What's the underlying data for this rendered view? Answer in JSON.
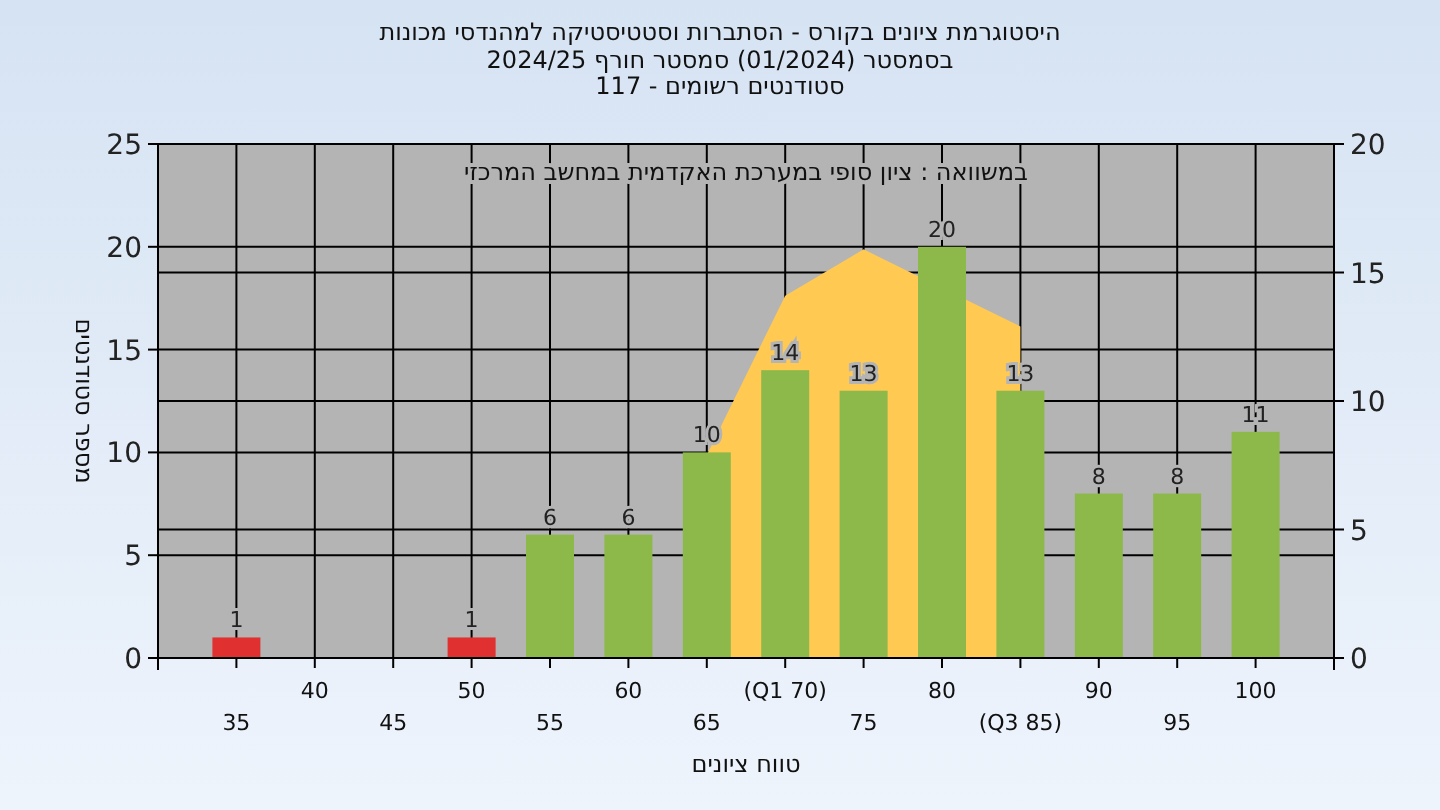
{
  "chart_data": {
    "type": "bar",
    "title": "היסטוגרמת ציונים בקורס - הסתברות וסטטיסטיקה למהנדסי מכונות",
    "subtitle": "בסמסטר  (01/2024)  סמסטר חורף 2024/25\nסטודנטים רשומים - 117",
    "xlabel": "טווח ציונים",
    "ylabel": "מספר סטודנטים",
    "annotations": [
      "במשוואה : ציון סופי במערכת האקדמית במחשב המרכזי"
    ],
    "categories": [
      "35",
      "40",
      "45",
      "50",
      "55",
      "60",
      "65",
      "(Q1 70)",
      "75",
      "80",
      "(Q3 85)",
      "90",
      "95",
      "100"
    ],
    "series": [
      {
        "type": "area",
        "axis": "y2",
        "color": "#ffc952",
        "values": [
          null,
          null,
          null,
          null,
          null,
          null,
          7.9,
          14.1,
          15.9,
          null,
          12.9,
          null,
          null,
          null
        ]
      },
      {
        "values": [
          1,
          0,
          0,
          1,
          6,
          6,
          10,
          14,
          13,
          20,
          13,
          8,
          8,
          11
        ],
        "value_labels": [
          "1",
          null,
          null,
          "1",
          "6",
          "6",
          "10",
          "14",
          "13",
          "20",
          "13",
          "8",
          "8",
          "11"
        ],
        "colors": [
          "#e03030",
          "#8db84a",
          "#8db84a",
          "#e03030",
          "#8db84a",
          "#8db84a",
          "#8db84a",
          "#8db84a",
          "#8db84a",
          "#8db84a",
          "#8db84a",
          "#8db84a",
          "#8db84a",
          "#8db84a"
        ]
      }
    ],
    "ylim": [
      0,
      25
    ],
    "yticks": [
      0,
      5,
      10,
      15,
      20,
      25
    ],
    "y2lim": [
      0,
      20
    ],
    "y2ticks": [
      0,
      5,
      10,
      15,
      20
    ],
    "grid": true
  }
}
